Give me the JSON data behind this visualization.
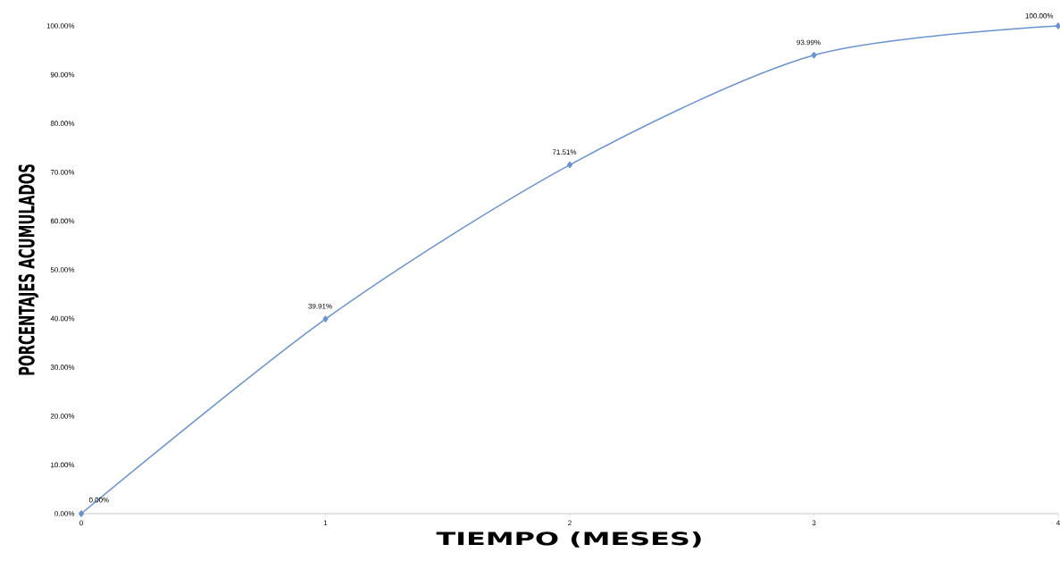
{
  "chart_data": {
    "type": "line",
    "xlabel": "TIEMPO (MESES)",
    "ylabel": "PORCENTAJES ACUMULADOS",
    "x": [
      0,
      1,
      2,
      3,
      4
    ],
    "series": [
      {
        "color": "#6a93cf",
        "values": [
          0,
          39.91,
          71.51,
          93.99,
          100
        ],
        "value_labels": [
          "0.00%",
          "39.91%",
          "71.51%",
          "93.99%",
          "100.00%"
        ]
      }
    ],
    "xlim": [
      0,
      4
    ],
    "xticks": [
      0,
      1,
      2,
      3,
      4
    ],
    "ylim": [
      0,
      100
    ],
    "yticks": [
      {
        "value": 0,
        "label": "0.00%"
      },
      {
        "value": 10,
        "label": "10.00%"
      },
      {
        "value": 20,
        "label": "20.00%"
      },
      {
        "value": 30,
        "label": "30.00%"
      },
      {
        "value": 40,
        "label": "40.00%"
      },
      {
        "value": 50,
        "label": "50.00%"
      },
      {
        "value": 60,
        "label": "60.00%"
      },
      {
        "value": 70,
        "label": "70.00%"
      },
      {
        "value": 80,
        "label": "80.00%"
      },
      {
        "value": 90,
        "label": "90.00%"
      },
      {
        "value": 100,
        "label": "100.00%"
      }
    ],
    "grid": false,
    "marker": "diamond",
    "line_style": "solid"
  }
}
